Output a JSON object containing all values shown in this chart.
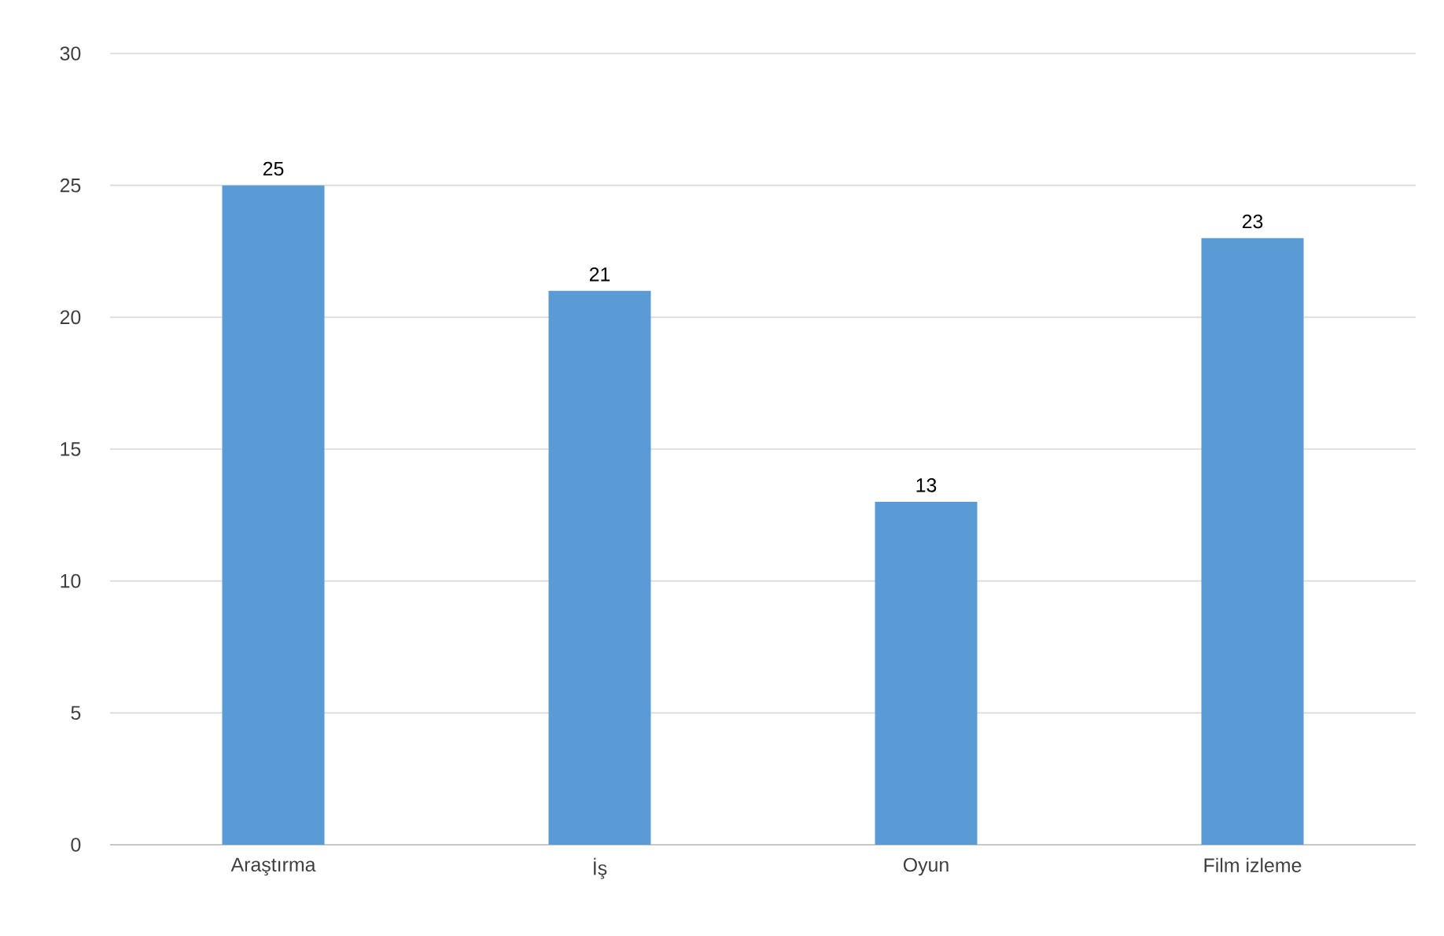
{
  "chart_data": {
    "type": "bar",
    "categories": [
      "Araştırma",
      "İş",
      "Oyun",
      "Film izleme"
    ],
    "values": [
      25,
      21,
      13,
      23
    ],
    "color": "#5b9bd5",
    "ylim": [
      0,
      30
    ],
    "yticks": [
      0,
      5,
      10,
      15,
      20,
      25,
      30
    ],
    "grid": "y",
    "data_labels": true
  }
}
